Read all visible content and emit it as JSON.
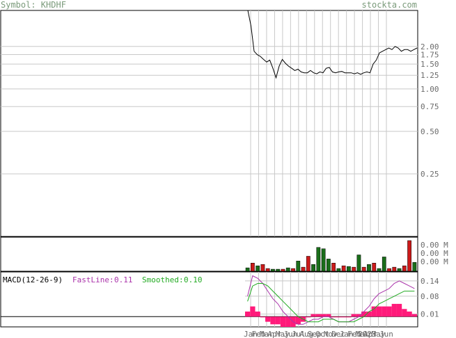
{
  "header": {
    "symbol_label": "Symbol: KHDHF",
    "site": "stockta.com"
  },
  "colors": {
    "grid": "#c8c8c8",
    "border": "#000000",
    "price_line": "#000000",
    "vol_up": "#1a6e1a",
    "vol_down": "#cc1a1a",
    "fast_line": "#aa33aa",
    "smoothed": "#22aa22",
    "histogram": "#ff1a7a",
    "hdr_text": "#7a9a7a",
    "axis_text": "#6b6b6b"
  },
  "chart_data": [
    {
      "type": "line",
      "title": "",
      "scale": "log",
      "y_ticks": [
        "2.00",
        "1.75",
        "1.50",
        "1.25",
        "1.00",
        "0.75",
        "0.50",
        "0.25"
      ],
      "y_tick_values": [
        2.0,
        1.75,
        1.5,
        1.25,
        1.0,
        0.75,
        0.5,
        0.25
      ],
      "ylim": [
        0.09,
        3.6
      ],
      "grid": true,
      "x_tick_labels": [
        "Jan",
        "Feb",
        "Mar",
        "Apr",
        "May",
        "Jun",
        "Jul",
        "Aug",
        "Sep",
        "Oct",
        "Nov",
        "Dec",
        "Jan 2023",
        "Feb",
        "Mar",
        "Apr",
        "May",
        "Jun"
      ],
      "x_tick_pos": [
        0,
        0.048,
        0.096,
        0.144,
        0.192,
        0.24,
        0.288,
        0.336,
        0.384,
        0.432,
        0.48,
        0.528,
        0.576,
        0.624,
        0.672,
        0.72,
        0.768,
        0.816
      ],
      "series": [
        {
          "values": [
            3.6,
            2.8,
            1.85,
            1.75,
            1.7,
            1.62,
            1.55,
            1.6,
            1.4,
            1.2,
            1.45,
            1.62,
            1.52,
            1.45,
            1.4,
            1.35,
            1.38,
            1.32,
            1.3,
            1.3,
            1.35,
            1.3,
            1.28,
            1.32,
            1.3,
            1.4,
            1.42,
            1.32,
            1.3,
            1.32,
            1.33,
            1.3,
            1.3,
            1.3,
            1.28,
            1.3,
            1.27,
            1.3,
            1.32,
            1.3,
            1.5,
            1.6,
            1.8,
            1.85,
            1.9,
            1.95,
            1.9,
            2.0,
            1.95,
            1.85,
            1.9,
            1.9,
            1.85,
            1.9,
            1.95
          ]
        }
      ]
    },
    {
      "type": "bar",
      "title": "",
      "y_ticks": [
        "0.00 M",
        "0.00 M",
        "0.00 M"
      ],
      "values": [
        0.5,
        1.2,
        0.8,
        1.0,
        0.4,
        0.3,
        0.3,
        0.3,
        0.5,
        0.4,
        1.5,
        0.6,
        2.2,
        1.0,
        3.5,
        3.3,
        1.8,
        1.2,
        0.4,
        0.8,
        0.7,
        0.6,
        2.4,
        0.6,
        1.0,
        1.2,
        0.4,
        2.1,
        0.4,
        0.6,
        0.4,
        0.8,
        4.5,
        1.3
      ],
      "directions": [
        "up",
        "down",
        "up",
        "down",
        "down",
        "up",
        "up",
        "down",
        "up",
        "down",
        "up",
        "down",
        "down",
        "up",
        "up",
        "up",
        "up",
        "down",
        "up",
        "down",
        "up",
        "down",
        "up",
        "down",
        "up",
        "down",
        "up",
        "up",
        "down",
        "down",
        "up",
        "down",
        "down",
        "up"
      ],
      "ylim": [
        0,
        4.8
      ]
    },
    {
      "type": "line",
      "title": "MACD(12-26-9)",
      "legend": [
        {
          "label": "FastLine:",
          "value": "0.11"
        },
        {
          "label": "Smoothed:",
          "value": "0.10"
        }
      ],
      "y_ticks": [
        "0.14",
        "0.08",
        "0.01"
      ],
      "y_tick_values": [
        0.14,
        0.08,
        0.01
      ],
      "ylim": [
        -0.04,
        0.175
      ],
      "zero_line": 0.0,
      "series": [
        {
          "name": "FastLine",
          "values": [
            0.08,
            0.16,
            0.15,
            0.13,
            0.1,
            0.07,
            0.05,
            0.02,
            0.0,
            -0.02,
            -0.03,
            -0.03,
            -0.02,
            -0.01,
            -0.01,
            0.0,
            0.0,
            -0.01,
            -0.02,
            -0.02,
            -0.02,
            -0.01,
            0.0,
            0.02,
            0.04,
            0.07,
            0.09,
            0.1,
            0.11,
            0.13,
            0.14,
            0.13,
            0.12,
            0.11
          ]
        },
        {
          "name": "Smoothed",
          "values": [
            0.06,
            0.12,
            0.13,
            0.13,
            0.12,
            0.1,
            0.08,
            0.06,
            0.04,
            0.02,
            0.0,
            -0.01,
            -0.02,
            -0.02,
            -0.02,
            -0.01,
            -0.01,
            -0.01,
            -0.02,
            -0.02,
            -0.02,
            -0.02,
            -0.01,
            0.0,
            0.02,
            0.03,
            0.05,
            0.06,
            0.07,
            0.08,
            0.09,
            0.1,
            0.1,
            0.1
          ]
        },
        {
          "name": "Histogram",
          "values": [
            0.02,
            0.04,
            0.02,
            0.0,
            -0.02,
            -0.03,
            -0.03,
            -0.04,
            -0.04,
            -0.04,
            -0.03,
            -0.02,
            0.0,
            0.01,
            0.01,
            0.01,
            0.01,
            0.0,
            0.0,
            0.0,
            0.0,
            0.01,
            0.01,
            0.02,
            0.02,
            0.04,
            0.04,
            0.04,
            0.04,
            0.05,
            0.05,
            0.03,
            0.02,
            0.01
          ]
        }
      ]
    }
  ]
}
